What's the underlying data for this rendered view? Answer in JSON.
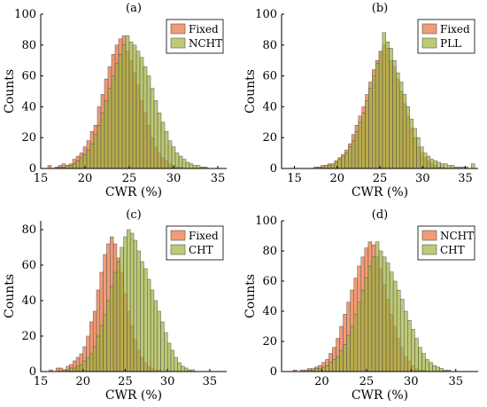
{
  "figure": {
    "ylabel_text": "Counts",
    "xlabel_text": "CWR (%)"
  },
  "colors": {
    "orange": "#f08a5d",
    "olive": "#a3b33a"
  },
  "chart_data": [
    {
      "type": "bar",
      "title": "(a)",
      "xlabel": "CWR (%)",
      "ylabel": "Counts",
      "xlim": [
        15,
        36
      ],
      "ylim": [
        0,
        100
      ],
      "xticks": [
        15,
        20,
        25,
        30,
        35
      ],
      "yticks": [
        0,
        20,
        40,
        60,
        80,
        100
      ],
      "legend_position": "top-right",
      "bin_start": 15.8,
      "bin_width": 0.4,
      "series": [
        {
          "name": "Fixed",
          "color": "#f08a5d",
          "values": [
            2,
            0,
            1,
            2,
            3,
            2,
            3,
            6,
            8,
            10,
            14,
            18,
            24,
            28,
            40,
            48,
            58,
            66,
            74,
            80,
            84,
            86,
            76,
            70,
            62,
            54,
            44,
            36,
            28,
            20,
            14,
            10,
            7,
            5,
            3,
            2,
            1,
            1,
            0,
            0,
            0,
            0,
            0,
            0,
            0,
            0,
            0,
            0,
            0,
            0,
            0,
            0
          ]
        },
        {
          "name": "NCHT",
          "color": "#a3b33a",
          "values": [
            0,
            0,
            0,
            1,
            1,
            2,
            2,
            3,
            5,
            7,
            9,
            12,
            16,
            22,
            28,
            36,
            44,
            52,
            60,
            68,
            74,
            80,
            86,
            82,
            80,
            76,
            72,
            66,
            60,
            52,
            44,
            36,
            30,
            24,
            18,
            14,
            10,
            8,
            6,
            4,
            3,
            2,
            2,
            1,
            1,
            0,
            0,
            0,
            0,
            0,
            0,
            0
          ]
        }
      ]
    },
    {
      "type": "bar",
      "title": "(b)",
      "xlabel": "CWR (%)",
      "ylabel": "Counts",
      "xlim": [
        13.5,
        36.5
      ],
      "ylim": [
        0,
        100
      ],
      "xticks": [
        15,
        20,
        25,
        30,
        35
      ],
      "yticks": [
        0,
        20,
        40,
        60,
        80,
        100
      ],
      "legend_position": "top-right",
      "bin_start": 16.5,
      "bin_width": 0.4,
      "series": [
        {
          "name": "Fixed",
          "color": "#f08a5d",
          "values": [
            0,
            0,
            1,
            1,
            2,
            2,
            3,
            3,
            5,
            7,
            9,
            12,
            16,
            22,
            28,
            34,
            40,
            48,
            56,
            64,
            70,
            76,
            80,
            78,
            70,
            66,
            58,
            50,
            42,
            34,
            26,
            20,
            14,
            10,
            7,
            5,
            3,
            2,
            1,
            1,
            0,
            0,
            0,
            0,
            0,
            0,
            0,
            0,
            0
          ]
        },
        {
          "name": "PLL",
          "color": "#a3b33a",
          "values": [
            0,
            0,
            0,
            1,
            1,
            2,
            2,
            3,
            4,
            6,
            8,
            10,
            14,
            18,
            24,
            30,
            36,
            44,
            52,
            60,
            68,
            76,
            88,
            82,
            78,
            70,
            62,
            56,
            48,
            40,
            32,
            26,
            20,
            14,
            10,
            8,
            6,
            5,
            4,
            3,
            3,
            2,
            2,
            1,
            1,
            1,
            1,
            0,
            3
          ]
        }
      ]
    },
    {
      "type": "bar",
      "title": "(c)",
      "xlabel": "CWR (%)",
      "ylabel": "Counts",
      "xlim": [
        15,
        37
      ],
      "ylim": [
        0,
        85
      ],
      "xticks": [
        15,
        20,
        25,
        30,
        35
      ],
      "yticks": [
        0,
        20,
        40,
        60,
        80
      ],
      "legend_position": "top-right",
      "bin_start": 16.0,
      "bin_width": 0.4,
      "series": [
        {
          "name": "Fixed",
          "color": "#f08a5d",
          "values": [
            1,
            0,
            2,
            2,
            1,
            3,
            4,
            6,
            8,
            10,
            14,
            20,
            28,
            34,
            46,
            56,
            66,
            72,
            76,
            72,
            64,
            56,
            44,
            34,
            26,
            18,
            12,
            8,
            5,
            3,
            2,
            1,
            1,
            0,
            0,
            0,
            0,
            0,
            0,
            0,
            0,
            0,
            0,
            0,
            0,
            0,
            0,
            0,
            0,
            0,
            0
          ]
        },
        {
          "name": "CHT",
          "color": "#a3b33a",
          "values": [
            0,
            0,
            0,
            0,
            1,
            1,
            2,
            2,
            3,
            4,
            6,
            8,
            10,
            14,
            20,
            26,
            32,
            40,
            48,
            56,
            62,
            70,
            76,
            80,
            78,
            74,
            68,
            62,
            58,
            52,
            46,
            40,
            34,
            28,
            22,
            16,
            12,
            8,
            5,
            3,
            2,
            1,
            1,
            0,
            0,
            0,
            0,
            0,
            0,
            0,
            0
          ]
        }
      ]
    },
    {
      "type": "bar",
      "title": "(d)",
      "xlabel": "CWR (%)",
      "ylabel": "Counts",
      "xlim": [
        15.5,
        37.5
      ],
      "ylim": [
        0,
        100
      ],
      "xticks": [
        20,
        25,
        30,
        35
      ],
      "yticks": [
        0,
        20,
        40,
        60,
        80,
        100
      ],
      "legend_position": "top-right",
      "bin_start": 16.8,
      "bin_width": 0.4,
      "series": [
        {
          "name": "NCHT",
          "color": "#f08a5d",
          "values": [
            1,
            0,
            1,
            1,
            2,
            2,
            3,
            4,
            6,
            8,
            12,
            16,
            22,
            30,
            38,
            46,
            54,
            62,
            70,
            76,
            82,
            86,
            84,
            76,
            68,
            58,
            48,
            38,
            30,
            22,
            16,
            10,
            7,
            4,
            2,
            1,
            1,
            0,
            0,
            0,
            0,
            0,
            0,
            0,
            0,
            0,
            0,
            0,
            0,
            0
          ]
        },
        {
          "name": "CHT",
          "color": "#a3b33a",
          "values": [
            0,
            0,
            0,
            0,
            1,
            1,
            2,
            2,
            3,
            4,
            6,
            8,
            10,
            14,
            18,
            24,
            30,
            38,
            46,
            54,
            62,
            70,
            76,
            86,
            80,
            76,
            72,
            66,
            60,
            54,
            48,
            40,
            34,
            28,
            22,
            16,
            12,
            8,
            6,
            4,
            3,
            2,
            1,
            1,
            0,
            0,
            0,
            0,
            0,
            0
          ]
        }
      ]
    }
  ]
}
